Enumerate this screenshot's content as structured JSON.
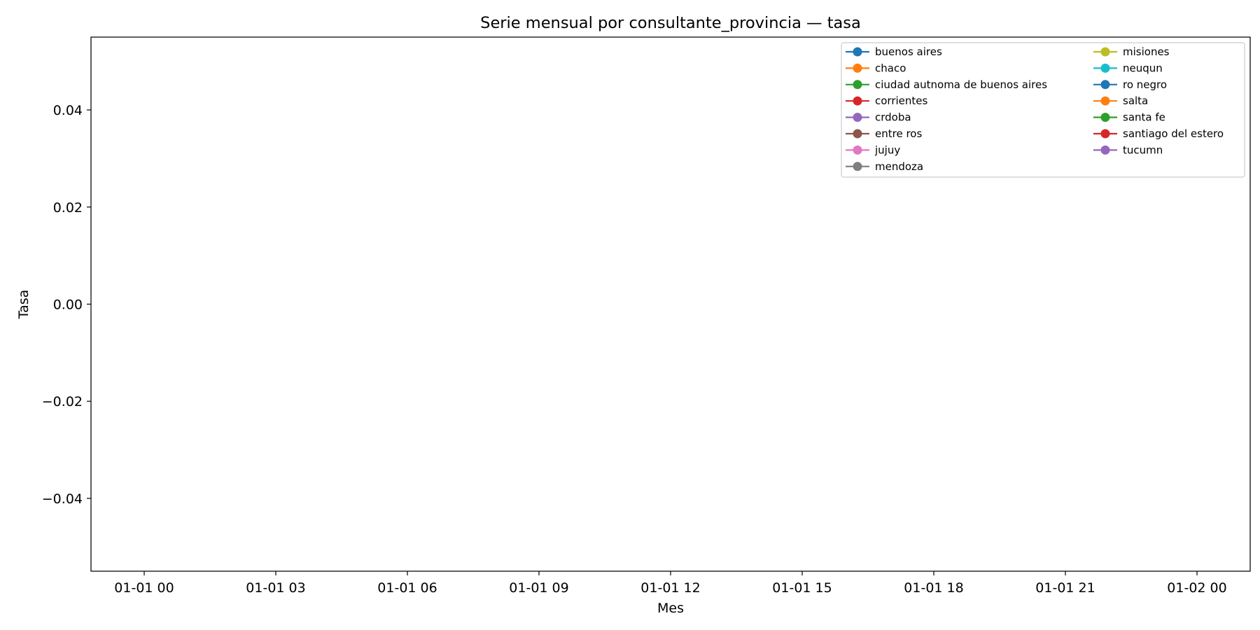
{
  "chart_data": {
    "type": "line",
    "title": "Serie mensual por consultante_provincia — tasa",
    "xlabel": "Mes",
    "ylabel": "Tasa",
    "ylim": [
      -0.055,
      0.055
    ],
    "y_ticks": [
      {
        "value": -0.04,
        "label": "−0.04"
      },
      {
        "value": -0.02,
        "label": "−0.02"
      },
      {
        "value": 0.0,
        "label": "0.00"
      },
      {
        "value": 0.02,
        "label": "0.02"
      },
      {
        "value": 0.04,
        "label": "0.04"
      }
    ],
    "x_ticks": [
      "01-01 00",
      "01-01 03",
      "01-01 06",
      "01-01 09",
      "01-01 12",
      "01-01 15",
      "01-01 18",
      "01-01 21",
      "01-02 00"
    ],
    "grid": false,
    "legend_placement": "top-right",
    "series": [
      {
        "name": "buenos aires",
        "color": "#1f77b4",
        "values": []
      },
      {
        "name": "chaco",
        "color": "#ff7f0e",
        "values": []
      },
      {
        "name": "ciudad autnoma de buenos aires",
        "color": "#2ca02c",
        "values": []
      },
      {
        "name": "corrientes",
        "color": "#d62728",
        "values": []
      },
      {
        "name": "crdoba",
        "color": "#9467bd",
        "values": []
      },
      {
        "name": "entre ros",
        "color": "#8c564b",
        "values": []
      },
      {
        "name": "jujuy",
        "color": "#e377c2",
        "values": []
      },
      {
        "name": "mendoza",
        "color": "#7f7f7f",
        "values": []
      },
      {
        "name": "misiones",
        "color": "#bcbd22",
        "values": []
      },
      {
        "name": "neuqun",
        "color": "#17becf",
        "values": []
      },
      {
        "name": "ro negro",
        "color": "#1f77b4",
        "values": []
      },
      {
        "name": "salta",
        "color": "#ff7f0e",
        "values": []
      },
      {
        "name": "santa fe",
        "color": "#2ca02c",
        "values": []
      },
      {
        "name": "santiago del estero",
        "color": "#d62728",
        "values": []
      },
      {
        "name": "tucumn",
        "color": "#9467bd",
        "values": []
      }
    ]
  }
}
